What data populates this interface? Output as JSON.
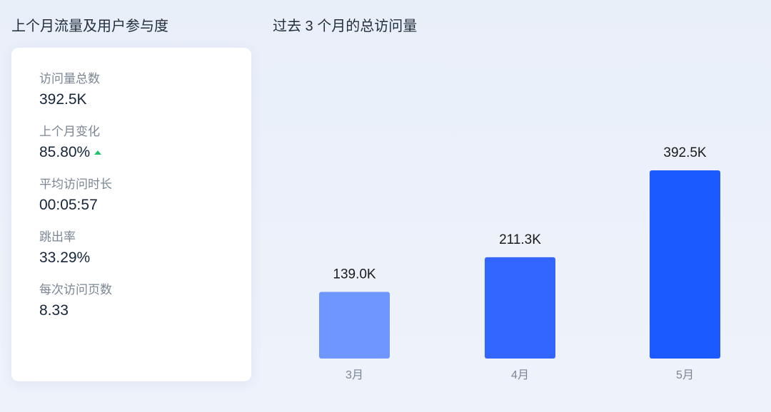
{
  "left_panel": {
    "title": "上个月流量及用户参与度",
    "metrics": [
      {
        "label": "访问量总数",
        "value": "392.5K"
      },
      {
        "label": "上个月变化",
        "value": "85.80%",
        "trend": "up",
        "trend_color": "#1fc26b"
      },
      {
        "label": "平均访问时长",
        "value": "00:05:57"
      },
      {
        "label": "跳出率",
        "value": "33.29%"
      },
      {
        "label": "每次访问页数",
        "value": "8.33"
      }
    ]
  },
  "chart_data": {
    "type": "bar",
    "title": "过去 3 个月的总访问量",
    "categories": [
      "3月",
      "4月",
      "5月"
    ],
    "values": [
      139.0,
      211.3,
      392.5
    ],
    "data_labels": [
      "139.0K",
      "211.3K",
      "392.5K"
    ],
    "unit": "K",
    "colors": [
      "#6f96fc",
      "#3366ff",
      "#1a5aff"
    ],
    "grid": false,
    "xlabel": "",
    "ylabel": ""
  }
}
